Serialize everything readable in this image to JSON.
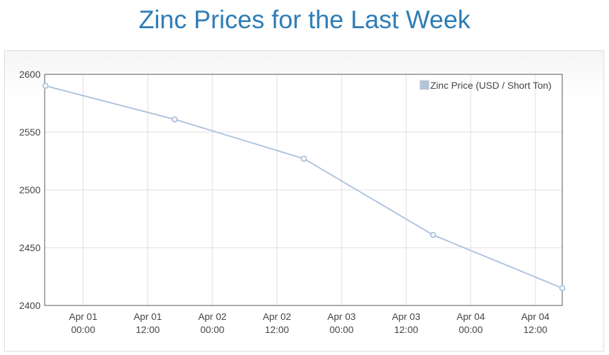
{
  "title": "Zinc Prices for the Last Week",
  "chart_data": {
    "type": "line",
    "title": "Zinc Prices for the Last Week",
    "xlabel": "",
    "ylabel": "",
    "series": [
      {
        "name": "Zinc Price (USD / Short Ton)",
        "color": "#b0c4de",
        "x_hours_from_apr01_0000": [
          -7,
          17,
          41,
          65,
          89
        ],
        "values": [
          2590,
          2561,
          2527,
          2461,
          2415
        ]
      }
    ],
    "x_ticks": [
      {
        "hours": 0,
        "line1": "Apr 01",
        "line2": "00:00"
      },
      {
        "hours": 12,
        "line1": "Apr 01",
        "line2": "12:00"
      },
      {
        "hours": 24,
        "line1": "Apr 02",
        "line2": "00:00"
      },
      {
        "hours": 36,
        "line1": "Apr 02",
        "line2": "12:00"
      },
      {
        "hours": 48,
        "line1": "Apr 03",
        "line2": "00:00"
      },
      {
        "hours": 60,
        "line1": "Apr 03",
        "line2": "12:00"
      },
      {
        "hours": 72,
        "line1": "Apr 04",
        "line2": "00:00"
      },
      {
        "hours": 84,
        "line1": "Apr 04",
        "line2": "12:00"
      }
    ],
    "y_ticks": [
      2400,
      2450,
      2500,
      2550,
      2600
    ],
    "xlim": [
      -7.15,
      89
    ],
    "ylim": [
      2400,
      2600
    ],
    "grid": true,
    "legend_position": "top-right"
  }
}
